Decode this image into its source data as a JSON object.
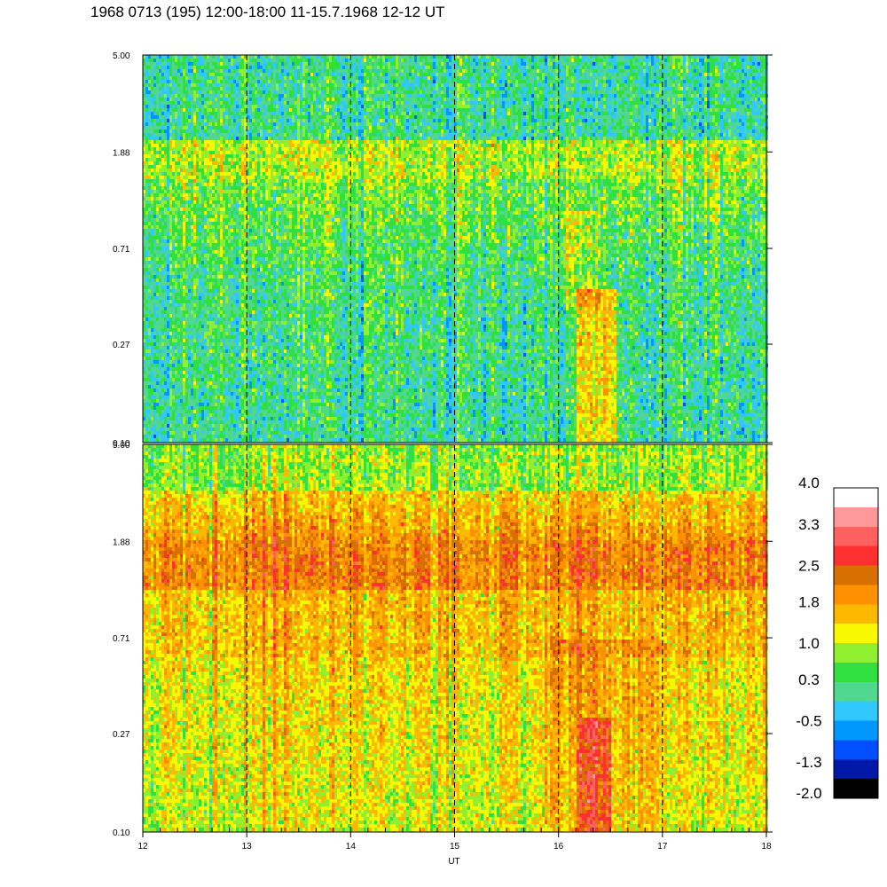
{
  "title": "1968 0713 (195) 12:00-18:00 11-15.7.1968  12-12 UT",
  "chart_data": {
    "type": "heatmap",
    "xlabel": "UT",
    "x_ticks": [
      "12",
      "13",
      "14",
      "15",
      "16",
      "17",
      "18"
    ],
    "x_range": [
      12,
      18
    ],
    "y_scale": "log",
    "y_ticks": [
      "5.00",
      "1.88",
      "0.71",
      "0.27",
      "0.10"
    ],
    "y_range": [
      0.1,
      5.0
    ],
    "vertical_dashed_lines_at": [
      13,
      14,
      15,
      16,
      17
    ],
    "panels": [
      {
        "name": "upper",
        "description_levels": {
          "high_freq_band_5.00_to_2.5": 0.1,
          "band_1.88": 0.9,
          "mid_0.71": 0.3,
          "low_0.27_to_0.10": 0.0,
          "event_16.2_to_16.5_low": 1.5
        }
      },
      {
        "name": "lower",
        "description_levels": {
          "top_5.00": 0.9,
          "band_1.88": 2.2,
          "mid_0.71": 1.5,
          "low_0.27_to_0.10": 1.1,
          "event_16.2_to_16.5_low": 2.8
        }
      }
    ],
    "colorbar": {
      "labels": [
        "4.0",
        "3.3",
        "2.5",
        "1.8",
        "1.0",
        "0.3",
        "-0.5",
        "-1.3",
        "-2.0"
      ],
      "range": [
        -2.0,
        4.0
      ],
      "colors": [
        "#000000",
        "#0018a8",
        "#0050ff",
        "#0098ff",
        "#30c8ff",
        "#50d890",
        "#30e040",
        "#90f030",
        "#f8f800",
        "#ffb800",
        "#ff9000",
        "#d87000",
        "#ff3030",
        "#ff6060",
        "#ff9898",
        "#ffffff"
      ]
    }
  }
}
